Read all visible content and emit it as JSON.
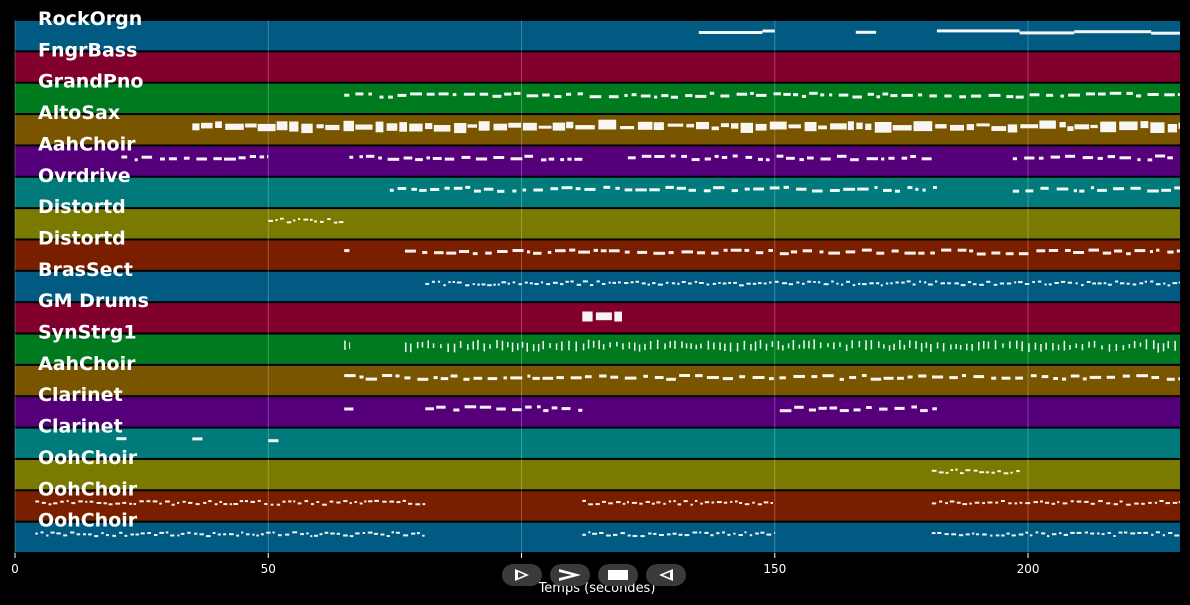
{
  "xaxis": {
    "title": "Temps (secondes)",
    "ticks": [
      0,
      50,
      100,
      150,
      200
    ],
    "range": [
      0,
      230
    ]
  },
  "tracks": [
    {
      "label": "RockOrgn",
      "color": "#005a82",
      "spans": [
        [
          135,
          150
        ],
        [
          166,
          170
        ],
        [
          182,
          230
        ]
      ],
      "pattern": "solid"
    },
    {
      "label": "FngrBass",
      "color": "#82002d",
      "spans": [],
      "pattern": "dash"
    },
    {
      "label": "GrandPno",
      "color": "#007a1e",
      "spans": [
        [
          65,
          230
        ]
      ],
      "pattern": "dash"
    },
    {
      "label": "AltoSax",
      "color": "#7a5500",
      "spans": [
        [
          35,
          230
        ]
      ],
      "pattern": "dense"
    },
    {
      "label": "AahChoir",
      "color": "#55007a",
      "spans": [
        [
          21,
          50
        ],
        [
          66,
          112
        ],
        [
          121,
          182
        ],
        [
          197,
          230
        ]
      ],
      "pattern": "dash"
    },
    {
      "label": "Ovrdrive",
      "color": "#007a7a",
      "spans": [
        [
          74,
          182
        ],
        [
          197,
          230
        ]
      ],
      "pattern": "dash"
    },
    {
      "label": "Distortd",
      "color": "#7a7a00",
      "spans": [
        [
          50,
          65
        ]
      ],
      "pattern": "fine"
    },
    {
      "label": "Distortd",
      "color": "#7a1e00",
      "spans": [
        [
          65,
          67
        ],
        [
          77,
          230
        ]
      ],
      "pattern": "dash"
    },
    {
      "label": "BrasSect",
      "color": "#005a82",
      "spans": [
        [
          81,
          230
        ]
      ],
      "pattern": "fine"
    },
    {
      "label": "GM Drums",
      "color": "#82002d",
      "spans": [
        [
          112,
          120
        ]
      ],
      "pattern": "dense"
    },
    {
      "label": "SynStrg1",
      "color": "#007a1e",
      "spans": [
        [
          65,
          66
        ],
        [
          77,
          230
        ]
      ],
      "pattern": "ticks"
    },
    {
      "label": "AahChoir",
      "color": "#7a5500",
      "spans": [
        [
          65,
          230
        ]
      ],
      "pattern": "dash"
    },
    {
      "label": "Clarinet",
      "color": "#55007a",
      "spans": [
        [
          65,
          67
        ],
        [
          81,
          112
        ],
        [
          151,
          182
        ]
      ],
      "pattern": "dash"
    },
    {
      "label": "Clarinet",
      "color": "#007a7a",
      "spans": [
        [
          20,
          22
        ],
        [
          35,
          37
        ],
        [
          50,
          52
        ]
      ],
      "pattern": "solid"
    },
    {
      "label": "OohChoir",
      "color": "#7a7a00",
      "spans": [
        [
          181,
          199
        ]
      ],
      "pattern": "fine"
    },
    {
      "label": "OohChoir",
      "color": "#7a1e00",
      "spans": [
        [
          4,
          81
        ],
        [
          112,
          150
        ],
        [
          181,
          230
        ]
      ],
      "pattern": "fine"
    },
    {
      "label": "OohChoir",
      "color": "#005a82",
      "spans": [
        [
          4,
          81
        ],
        [
          112,
          150
        ],
        [
          181,
          230
        ]
      ],
      "pattern": "fine"
    },
    {
      "label": "",
      "color": "#005a82",
      "spans": [
        [
          4,
          81
        ],
        [
          112,
          150
        ],
        [
          181,
          230
        ]
      ],
      "pattern": "dash"
    }
  ],
  "controls": [
    {
      "name": "play-button",
      "icon": "play-outline-icon"
    },
    {
      "name": "fast-forward-button",
      "icon": "chevron-right-icon"
    },
    {
      "name": "stop-button",
      "icon": "stop-icon"
    },
    {
      "name": "rewind-button",
      "icon": "rewind-outline-icon"
    }
  ]
}
